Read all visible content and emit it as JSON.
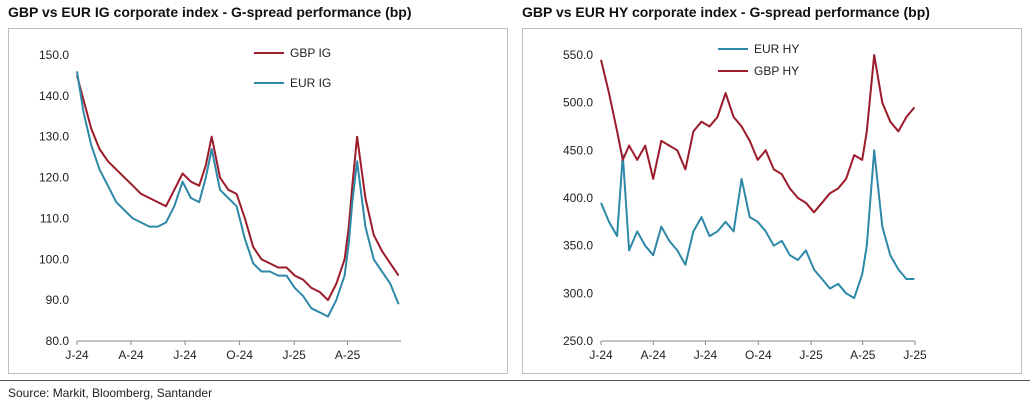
{
  "source": "Source: Markit, Bloomberg, Santander",
  "colors": {
    "gbp": "#9b1b2b",
    "eur": "#2e88a8"
  },
  "chart_data": [
    {
      "type": "line",
      "title": "GBP vs EUR IG corporate index - G-spread performance (bp)",
      "ylim": [
        80,
        150
      ],
      "yticks": [
        80,
        90,
        100,
        110,
        120,
        130,
        140,
        150
      ],
      "ytick_labels": [
        "80.0",
        "90.0",
        "100.0",
        "110.0",
        "120.0",
        "130.0",
        "140.0",
        "150.0"
      ],
      "xlim": [
        "2024-01-01",
        "2025-06-30"
      ],
      "xticks": [
        "2024-01-01",
        "2024-04-01",
        "2024-07-01",
        "2024-10-01",
        "2025-01-01",
        "2025-04-01"
      ],
      "xtick_labels": [
        "J-24",
        "A-24",
        "J-24",
        "O-24",
        "J-25",
        "A-25"
      ],
      "legend": "top-right",
      "series": [
        {
          "name": "GBP IG",
          "color_key": "gbp",
          "x": [
            "2024-01-01",
            "2024-01-12",
            "2024-01-25",
            "2024-02-08",
            "2024-02-22",
            "2024-03-07",
            "2024-03-21",
            "2024-04-04",
            "2024-04-18",
            "2024-05-02",
            "2024-05-16",
            "2024-05-30",
            "2024-06-13",
            "2024-06-27",
            "2024-07-11",
            "2024-07-25",
            "2024-08-05",
            "2024-08-15",
            "2024-08-29",
            "2024-09-12",
            "2024-09-26",
            "2024-10-10",
            "2024-10-24",
            "2024-11-07",
            "2024-11-21",
            "2024-12-05",
            "2024-12-19",
            "2025-01-02",
            "2025-01-16",
            "2025-01-30",
            "2025-02-13",
            "2025-02-27",
            "2025-03-13",
            "2025-03-27",
            "2025-04-03",
            "2025-04-09",
            "2025-04-17",
            "2025-05-01",
            "2025-05-15",
            "2025-05-29",
            "2025-06-12",
            "2025-06-26"
          ],
          "y": [
            145,
            139,
            132,
            127,
            124,
            122,
            120,
            118,
            116,
            115,
            114,
            113,
            117,
            121,
            119,
            118,
            123,
            130,
            120,
            117,
            116,
            110,
            103,
            100,
            99,
            98,
            98,
            96,
            95,
            93,
            92,
            90,
            94,
            100,
            108,
            118,
            130,
            115,
            106,
            102,
            99,
            96
          ]
        },
        {
          "name": "EUR IG",
          "color_key": "eur",
          "x": [
            "2024-01-01",
            "2024-01-12",
            "2024-01-25",
            "2024-02-08",
            "2024-02-22",
            "2024-03-07",
            "2024-03-21",
            "2024-04-04",
            "2024-04-18",
            "2024-05-02",
            "2024-05-16",
            "2024-05-30",
            "2024-06-13",
            "2024-06-27",
            "2024-07-11",
            "2024-07-25",
            "2024-08-05",
            "2024-08-15",
            "2024-08-29",
            "2024-09-12",
            "2024-09-26",
            "2024-10-10",
            "2024-10-24",
            "2024-11-07",
            "2024-11-21",
            "2024-12-05",
            "2024-12-19",
            "2025-01-02",
            "2025-01-16",
            "2025-01-30",
            "2025-02-13",
            "2025-02-27",
            "2025-03-13",
            "2025-03-27",
            "2025-04-03",
            "2025-04-09",
            "2025-04-17",
            "2025-05-01",
            "2025-05-15",
            "2025-05-29",
            "2025-06-12",
            "2025-06-26"
          ],
          "y": [
            146,
            136,
            128,
            122,
            118,
            114,
            112,
            110,
            109,
            108,
            108,
            109,
            113,
            119,
            115,
            114,
            120,
            127,
            117,
            115,
            113,
            105,
            99,
            97,
            97,
            96,
            96,
            93,
            91,
            88,
            87,
            86,
            90,
            96,
            104,
            114,
            124,
            108,
            100,
            97,
            94,
            89
          ]
        }
      ]
    },
    {
      "type": "line",
      "title": "GBP vs EUR HY corporate index - G-spread performance (bp)",
      "ylim": [
        250,
        550
      ],
      "yticks": [
        250,
        300,
        350,
        400,
        450,
        500,
        550
      ],
      "ytick_labels": [
        "250.0",
        "300.0",
        "350.0",
        "400.0",
        "450.0",
        "500.0",
        "550.0"
      ],
      "xlim": [
        "2024-01-01",
        "2025-07-01"
      ],
      "xticks": [
        "2024-01-01",
        "2024-04-01",
        "2024-07-01",
        "2024-10-01",
        "2025-01-01",
        "2025-04-01",
        "2025-07-01"
      ],
      "xtick_labels": [
        "J-24",
        "A-24",
        "J-24",
        "O-24",
        "J-25",
        "A-25",
        "J-25"
      ],
      "legend": "top-left",
      "series": [
        {
          "name": "EUR HY",
          "color_key": "eur",
          "x": [
            "2024-01-01",
            "2024-01-15",
            "2024-01-29",
            "2024-02-08",
            "2024-02-19",
            "2024-03-04",
            "2024-03-18",
            "2024-04-01",
            "2024-04-15",
            "2024-04-29",
            "2024-05-13",
            "2024-05-27",
            "2024-06-10",
            "2024-06-24",
            "2024-07-08",
            "2024-07-22",
            "2024-08-05",
            "2024-08-19",
            "2024-09-02",
            "2024-09-16",
            "2024-09-30",
            "2024-10-14",
            "2024-10-28",
            "2024-11-11",
            "2024-11-25",
            "2024-12-09",
            "2024-12-23",
            "2025-01-06",
            "2025-01-20",
            "2025-02-03",
            "2025-02-17",
            "2025-03-03",
            "2025-03-17",
            "2025-03-31",
            "2025-04-08",
            "2025-04-21",
            "2025-05-05",
            "2025-05-19",
            "2025-06-02",
            "2025-06-16",
            "2025-06-30"
          ],
          "y": [
            395,
            375,
            360,
            445,
            345,
            365,
            350,
            340,
            370,
            355,
            345,
            330,
            365,
            380,
            360,
            365,
            375,
            365,
            420,
            380,
            375,
            365,
            350,
            355,
            340,
            335,
            345,
            325,
            315,
            305,
            310,
            300,
            295,
            320,
            350,
            450,
            370,
            340,
            325,
            315,
            315
          ]
        },
        {
          "name": "GBP HY",
          "color_key": "gbp",
          "x": [
            "2024-01-01",
            "2024-01-15",
            "2024-01-29",
            "2024-02-08",
            "2024-02-19",
            "2024-03-04",
            "2024-03-18",
            "2024-04-01",
            "2024-04-15",
            "2024-04-29",
            "2024-05-13",
            "2024-05-27",
            "2024-06-10",
            "2024-06-24",
            "2024-07-08",
            "2024-07-22",
            "2024-08-05",
            "2024-08-19",
            "2024-09-02",
            "2024-09-16",
            "2024-09-30",
            "2024-10-14",
            "2024-10-28",
            "2024-11-11",
            "2024-11-25",
            "2024-12-09",
            "2024-12-23",
            "2025-01-06",
            "2025-01-20",
            "2025-02-03",
            "2025-02-17",
            "2025-03-03",
            "2025-03-17",
            "2025-03-31",
            "2025-04-08",
            "2025-04-21",
            "2025-05-05",
            "2025-05-19",
            "2025-06-02",
            "2025-06-16",
            "2025-06-30"
          ],
          "y": [
            545,
            510,
            470,
            440,
            455,
            440,
            455,
            420,
            460,
            455,
            450,
            430,
            470,
            480,
            475,
            485,
            510,
            485,
            475,
            460,
            440,
            450,
            430,
            425,
            410,
            400,
            395,
            385,
            395,
            405,
            410,
            420,
            445,
            440,
            470,
            550,
            500,
            480,
            470,
            485,
            495
          ]
        }
      ]
    }
  ]
}
